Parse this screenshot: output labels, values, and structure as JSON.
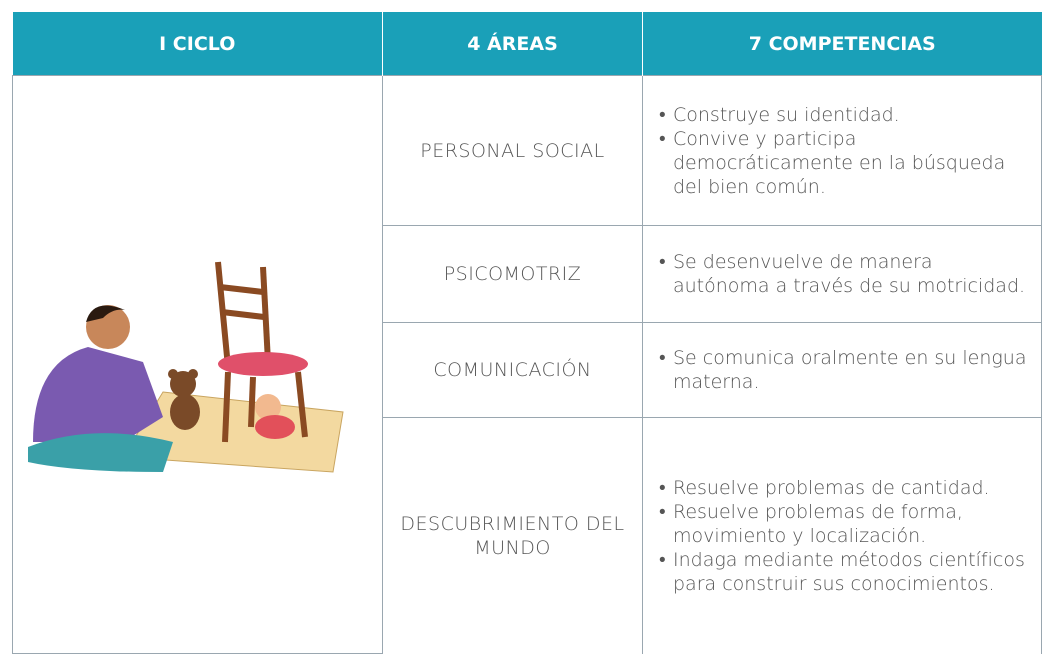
{
  "table": {
    "header": [
      "I CICLO",
      "4 ÁREAS",
      "7 COMPETENCIAS"
    ],
    "rows": [
      {
        "area": "PERSONAL SOCIAL",
        "competencias": [
          "Construye su identidad.",
          "Convive y participa democráticamente en la búsqueda del bien común."
        ]
      },
      {
        "area": "PSICOMOTRIZ",
        "competencias": [
          "Se desenvuelve de manera autónoma a través de su motricidad."
        ]
      },
      {
        "area": "COMUNICACIÓN",
        "competencias": [
          "Se comunica oralmente en su lengua materna."
        ]
      },
      {
        "area": "DESCUBRIMIENTO DEL MUNDO",
        "competencias": [
          "Resuelve problemas de cantidad.",
          "Resuelve problemas de forma, movimiento y localización.",
          "Indaga mediante métodos científicos para construir sus conocimientos."
        ]
      }
    ]
  }
}
